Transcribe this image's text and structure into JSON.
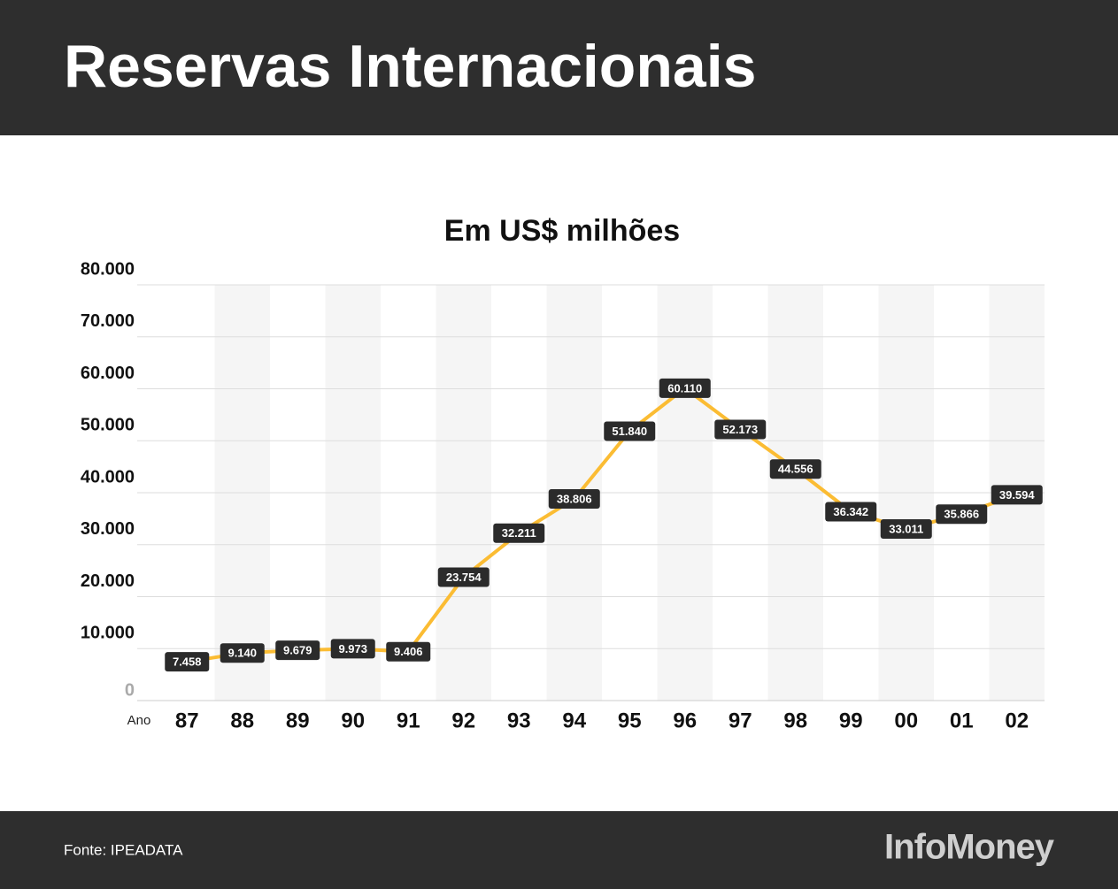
{
  "chart_data": {
    "type": "line",
    "title": "Reservas Internacionais",
    "subtitle": "Em US$ milhões",
    "x_label": "Ano",
    "source": "Fonte: IPEADATA",
    "brand": "InfoMoney",
    "categories": [
      "87",
      "88",
      "89",
      "90",
      "91",
      "92",
      "93",
      "94",
      "95",
      "96",
      "97",
      "98",
      "99",
      "00",
      "01",
      "02"
    ],
    "series": [
      {
        "name": "Reservas",
        "color": "#fbbc33",
        "values": [
          7458,
          9140,
          9679,
          9973,
          9406,
          23754,
          32211,
          38806,
          51840,
          60110,
          52173,
          44556,
          36342,
          33011,
          35866,
          39594
        ],
        "value_labels": [
          "7.458",
          "9.140",
          "9.679",
          "9.973",
          "9.406",
          "23.754",
          "32.211",
          "38.806",
          "51.840",
          "60.110",
          "52.173",
          "44.556",
          "36.342",
          "33.011",
          "35.866",
          "39.594"
        ]
      }
    ],
    "ylim": [
      0,
      80000
    ],
    "yticks": [
      0,
      {
        "value": 10000,
        "label": "10.000"
      },
      {
        "value": 20000,
        "label": "20.000"
      },
      {
        "value": 30000,
        "label": "30.000"
      },
      {
        "value": 40000,
        "label": "40.000"
      },
      {
        "value": 50000,
        "label": "50.000"
      },
      {
        "value": 60000,
        "label": "60.000"
      },
      {
        "value": 70000,
        "label": "70.000"
      },
      {
        "value": 80000,
        "label": "80.000"
      }
    ],
    "grid": true
  }
}
